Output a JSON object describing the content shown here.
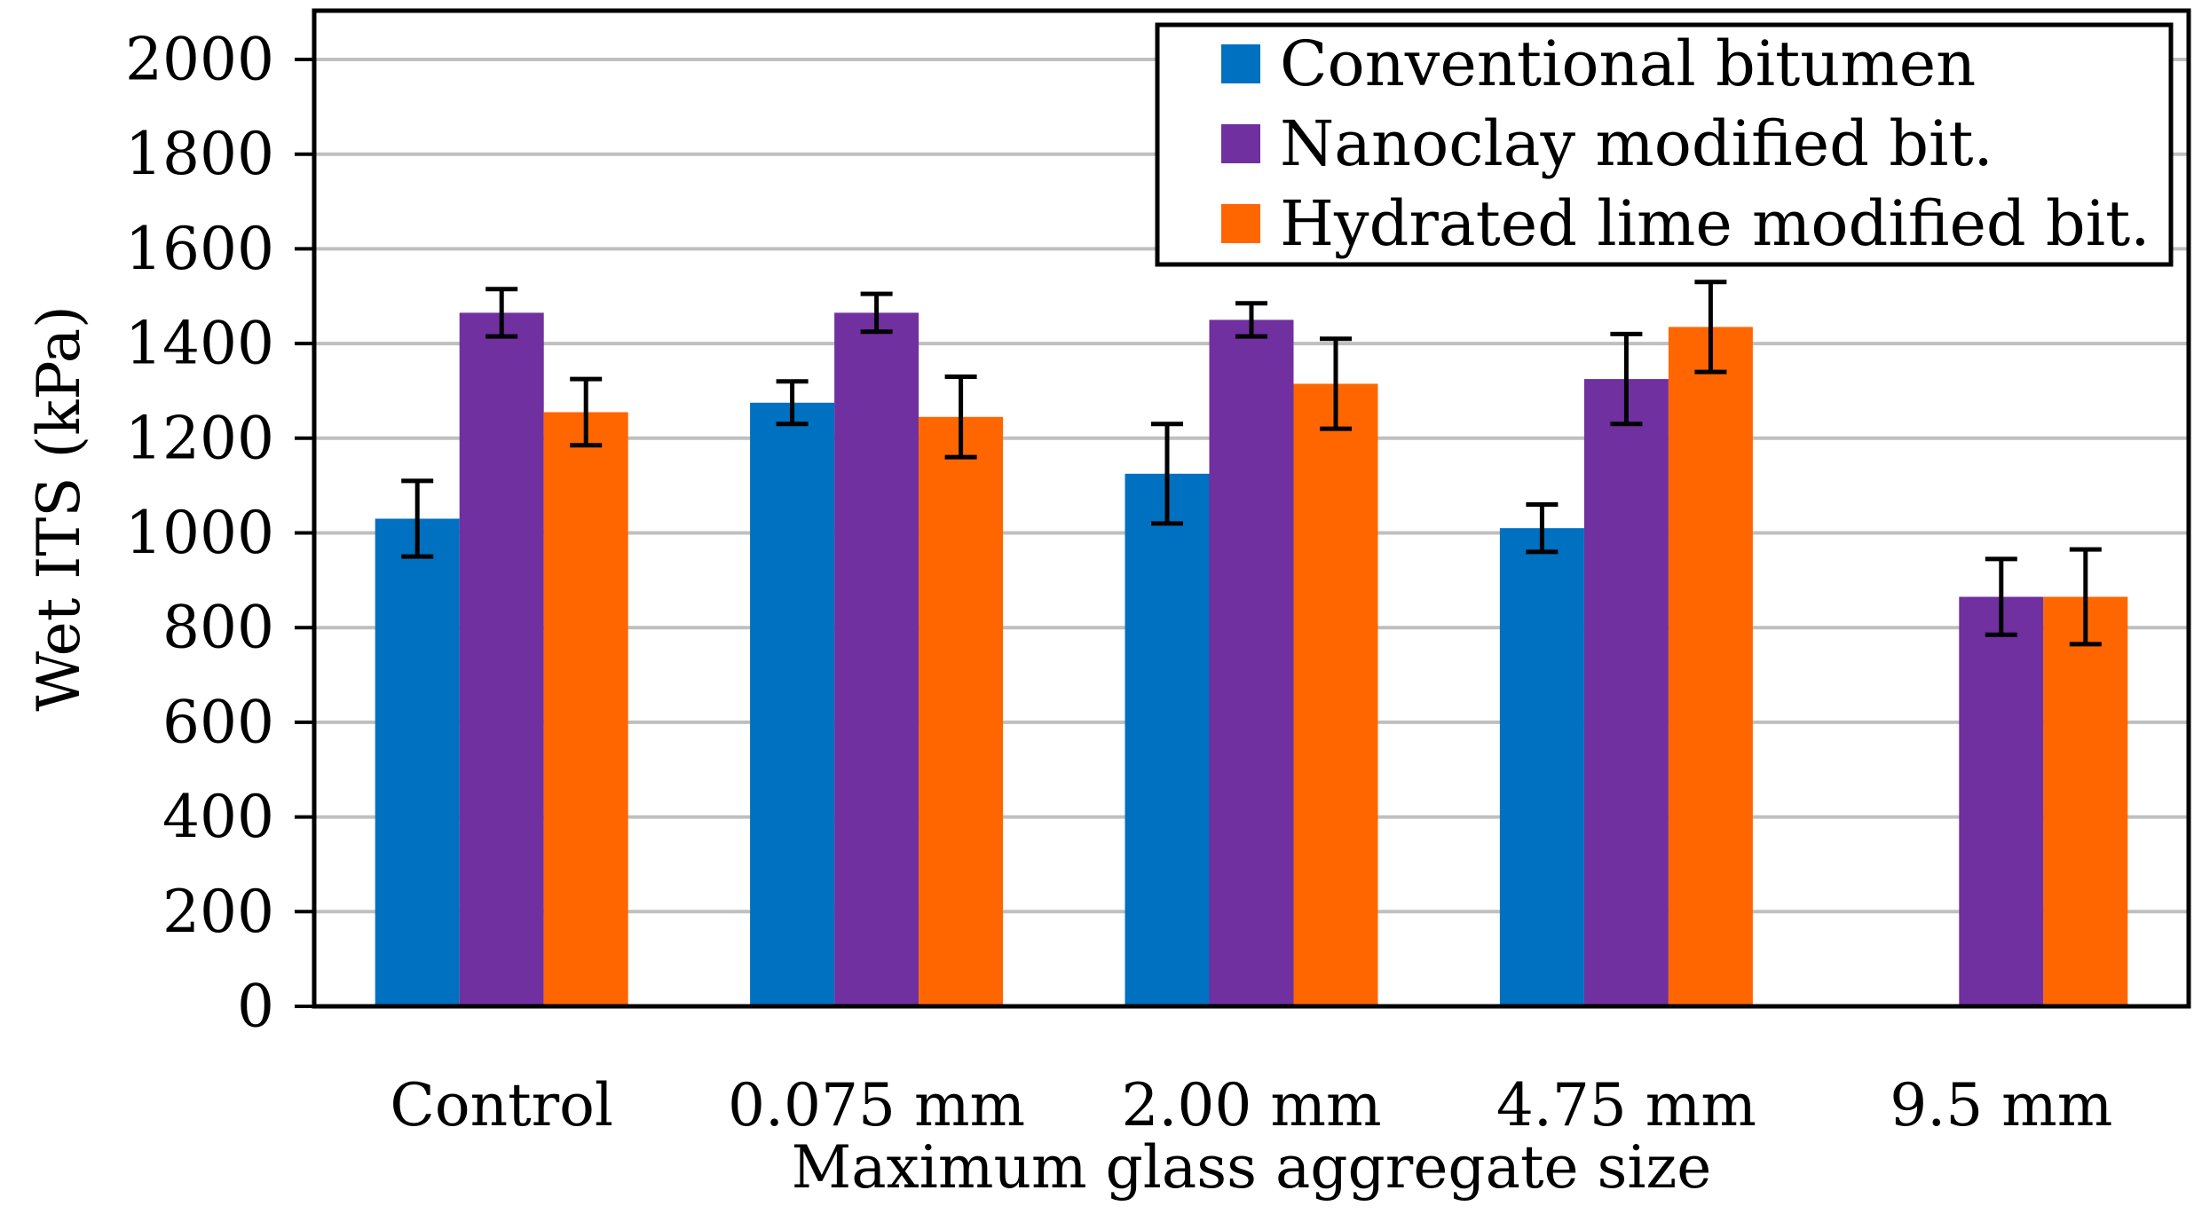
{
  "chart_data": {
    "type": "bar",
    "title": "",
    "xlabel": "Maximum glass aggregate size",
    "ylabel": "Wet ITS (kPa)",
    "ylim": [
      0,
      2000
    ],
    "ytick_step": 200,
    "grid": true,
    "legend_position": "top-right",
    "categories": [
      "Control",
      "0.075 mm",
      "2.00 mm",
      "4.75 mm",
      "9.5 mm"
    ],
    "series": [
      {
        "name": "Conventional bitumen",
        "color": "#0070C0",
        "values": [
          1030,
          1275,
          1125,
          1010,
          null
        ],
        "errors": [
          80,
          45,
          105,
          50,
          null
        ]
      },
      {
        "name": "Nanoclay modified bit.",
        "color": "#7030A0",
        "values": [
          1465,
          1465,
          1450,
          1325,
          865
        ],
        "errors": [
          50,
          40,
          35,
          95,
          80
        ]
      },
      {
        "name": "Hydrated lime modified bit.",
        "color": "#FF6600",
        "values": [
          1255,
          1245,
          1315,
          1435,
          865
        ],
        "errors": [
          70,
          85,
          95,
          95,
          100
        ]
      }
    ]
  }
}
